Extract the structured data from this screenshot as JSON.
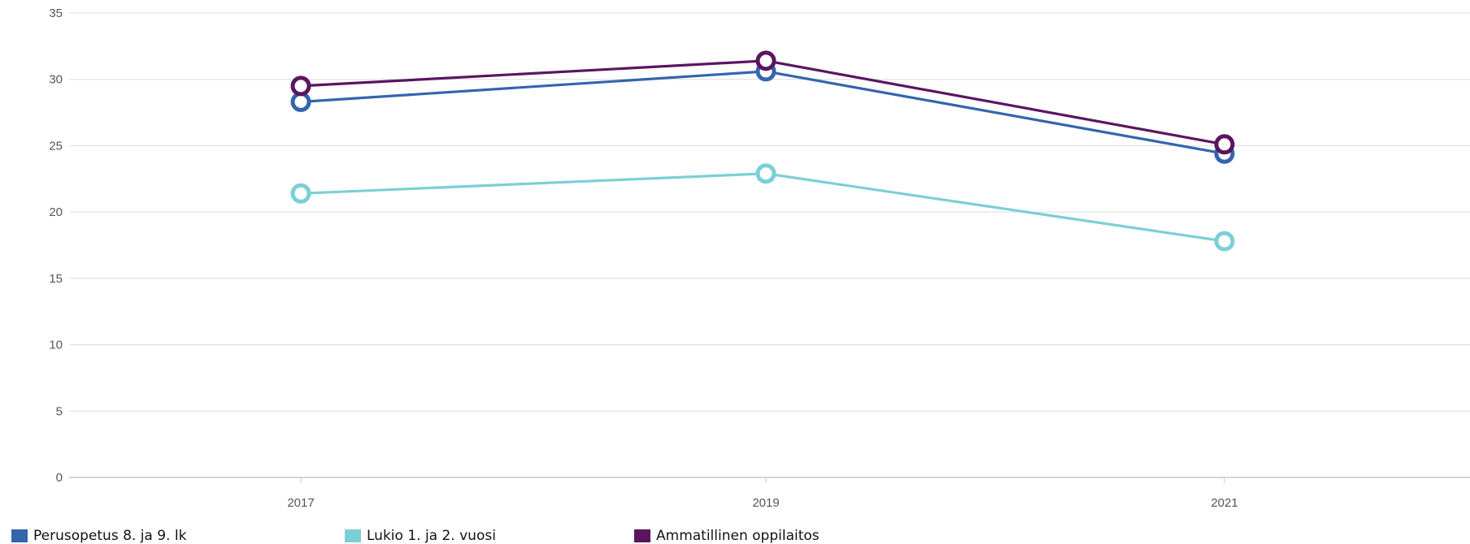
{
  "chart_data": {
    "type": "line",
    "title": "",
    "xlabel": "",
    "ylabel": "",
    "x": [
      "2017",
      "2019",
      "2021"
    ],
    "ylim": [
      0,
      35
    ],
    "yticks": [
      0,
      5,
      10,
      15,
      20,
      25,
      30,
      35
    ],
    "grid": true,
    "legend_position": "bottom-left",
    "series": [
      {
        "name": "Perusopetus 8. ja 9. lk",
        "values": [
          28.3,
          30.6,
          24.4
        ],
        "color": "#3465ad"
      },
      {
        "name": "Lukio 1. ja 2. vuosi",
        "values": [
          21.4,
          22.9,
          17.8
        ],
        "color": "#7ccfd6"
      },
      {
        "name": "Ammatillinen oppilaitos",
        "values": [
          29.5,
          31.4,
          25.1
        ],
        "color": "#5a1560"
      }
    ]
  }
}
